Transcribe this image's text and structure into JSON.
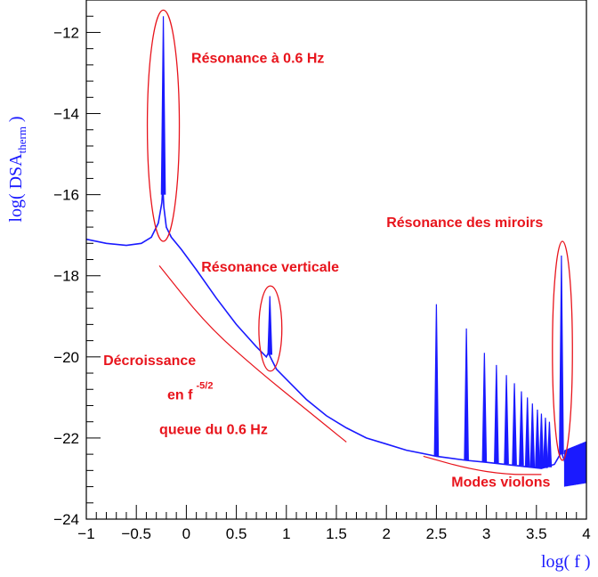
{
  "chart_data": {
    "type": "line",
    "xlabel": "log( f )",
    "ylabel": {
      "prefix": "log( DSA",
      "subscript": "therm",
      "suffix": " )"
    },
    "xlim": [
      -1,
      4
    ],
    "ylim": [
      -24,
      -11.2
    ],
    "x_ticks": [
      "-1",
      "-0.5",
      "0",
      "0.5",
      "1",
      "1.5",
      "2",
      "2.5",
      "3",
      "3.5",
      "4"
    ],
    "y_ticks": [
      "-24",
      "-22",
      "-20",
      "-18",
      "-16",
      "-14",
      "-12"
    ],
    "grid": false,
    "legend": "none",
    "series": [
      {
        "color": "#1a1aff",
        "curve": [
          [
            -1.0,
            -17.1
          ],
          [
            -0.8,
            -17.2
          ],
          [
            -0.6,
            -17.25
          ],
          [
            -0.45,
            -17.2
          ],
          [
            -0.35,
            -17.05
          ],
          [
            -0.28,
            -16.7
          ],
          [
            -0.245,
            -16.2
          ],
          [
            -0.235,
            -15.8
          ],
          [
            -0.225,
            -16.3
          ],
          [
            -0.2,
            -16.8
          ],
          [
            -0.15,
            -17.05
          ],
          [
            -0.05,
            -17.35
          ],
          [
            0.1,
            -17.85
          ],
          [
            0.3,
            -18.55
          ],
          [
            0.5,
            -19.2
          ],
          [
            0.7,
            -19.75
          ],
          [
            0.8,
            -20.0
          ],
          [
            0.82,
            -19.9
          ],
          [
            0.85,
            -20.05
          ],
          [
            0.9,
            -20.3
          ],
          [
            1.0,
            -20.55
          ],
          [
            1.2,
            -21.05
          ],
          [
            1.4,
            -21.45
          ],
          [
            1.6,
            -21.75
          ],
          [
            1.8,
            -22.0
          ],
          [
            2.0,
            -22.15
          ],
          [
            2.2,
            -22.3
          ],
          [
            2.4,
            -22.4
          ],
          [
            2.5,
            -22.45
          ],
          [
            2.8,
            -22.55
          ],
          [
            3.0,
            -22.6
          ],
          [
            3.3,
            -22.68
          ],
          [
            3.55,
            -22.75
          ],
          [
            3.68,
            -22.65
          ],
          [
            3.75,
            -22.35
          ],
          [
            3.8,
            -22.7
          ],
          [
            3.9,
            -22.95
          ],
          [
            4.0,
            -23.1
          ]
        ],
        "peaks": [
          {
            "x": -0.23,
            "top": -11.6,
            "base": -16.0
          },
          {
            "x": 0.835,
            "top": -18.5,
            "base": -19.95
          },
          {
            "x": 2.5,
            "top": -18.7,
            "base": -22.45
          },
          {
            "x": 2.8,
            "top": -19.3,
            "base": -22.55
          },
          {
            "x": 2.98,
            "top": -19.9,
            "base": -22.6
          },
          {
            "x": 3.1,
            "top": -20.2,
            "base": -22.62
          },
          {
            "x": 3.2,
            "top": -20.45,
            "base": -22.64
          },
          {
            "x": 3.28,
            "top": -20.65,
            "base": -22.66
          },
          {
            "x": 3.35,
            "top": -20.85,
            "base": -22.68
          },
          {
            "x": 3.41,
            "top": -21.0,
            "base": -22.7
          },
          {
            "x": 3.46,
            "top": -21.15,
            "base": -22.72
          },
          {
            "x": 3.51,
            "top": -21.3,
            "base": -22.73
          },
          {
            "x": 3.55,
            "top": -21.4,
            "base": -22.74
          },
          {
            "x": 3.59,
            "top": -21.5,
            "base": -22.74
          },
          {
            "x": 3.63,
            "top": -21.6,
            "base": -22.72
          },
          {
            "x": 3.75,
            "top": -17.5,
            "base": -22.4
          }
        ],
        "violin_fuzz": {
          "from": 3.78,
          "to": 4.0,
          "top": -22.3,
          "bottom": -23.2
        }
      }
    ],
    "annotations": [
      {
        "id": "res06",
        "text": "Résonance à 0.6 Hz",
        "x": 0.05,
        "y": -12.75
      },
      {
        "id": "resvert",
        "text": "Résonance verticale",
        "x": 0.15,
        "y": -17.9
      },
      {
        "id": "resmir",
        "text": "Résonance des miroirs",
        "x": 2.0,
        "y": -16.8
      },
      {
        "id": "decr1",
        "text": "Décroissance",
        "x": -0.83,
        "y": -20.2
      },
      {
        "id": "decr2",
        "text": "en f",
        "sup": "-5/2",
        "x": -0.19,
        "y": -21.05
      },
      {
        "id": "decr3",
        "text": "queue du 0.6 Hz",
        "x": -0.27,
        "y": -21.9
      },
      {
        "id": "violons",
        "text": "Modes violons",
        "x": 2.65,
        "y": -23.2
      }
    ],
    "ellipses": [
      {
        "cx": -0.23,
        "cy": -14.3,
        "rx": 0.16,
        "ry": 2.85
      },
      {
        "cx": 0.84,
        "cy": -19.3,
        "rx": 0.115,
        "ry": 1.05
      },
      {
        "cx": 3.76,
        "cy": -19.85,
        "rx": 0.1,
        "ry": 2.7
      }
    ],
    "guide_curves": [
      {
        "points": [
          [
            -0.27,
            -17.75
          ],
          [
            0.2,
            -19.2
          ],
          [
            0.7,
            -20.3
          ],
          [
            1.2,
            -21.3
          ],
          [
            1.6,
            -22.1
          ]
        ]
      },
      {
        "points": [
          [
            2.37,
            -22.45
          ],
          [
            2.8,
            -22.75
          ],
          [
            3.2,
            -22.9
          ],
          [
            3.55,
            -22.9
          ]
        ]
      }
    ]
  }
}
